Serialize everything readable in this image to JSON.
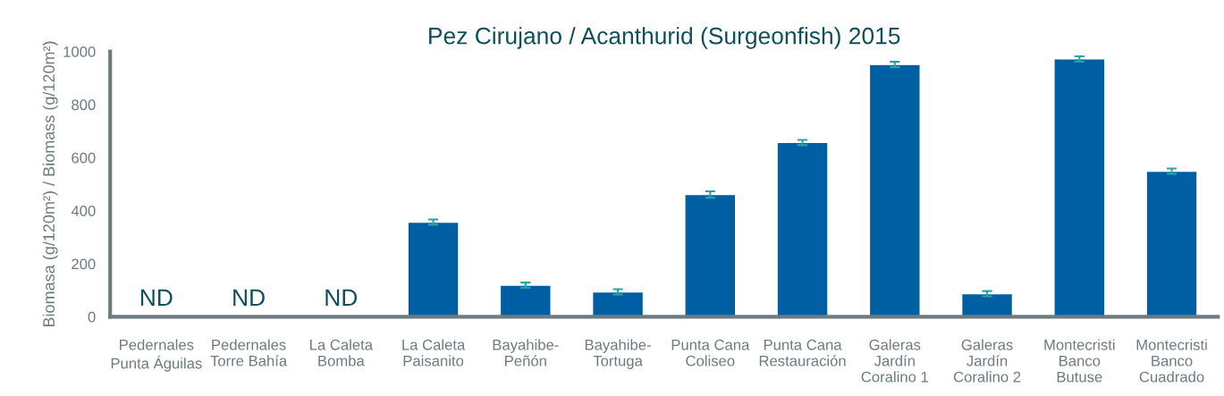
{
  "chart_data": {
    "type": "bar",
    "title": "Pez Cirujano / Acanthurid (Surgeonfish) 2015",
    "ylabel": "Biomasa (g/120m²) / Biomass (g/120m²)",
    "categories": [
      "Pedernales\nPunta Águilas",
      "Pedernales\nTorre Bahía",
      "La Caleta\nBomba",
      "La Caleta\nPaisanito",
      "Bayahibe-\nPeñón",
      "Bayahibe-\nTortuga",
      "Punta Cana\nColiseo",
      "Punta Cana\nRestauración",
      "Galeras\nJardín\nCoralino 1",
      "Galeras\nJardín\nCoralino 2",
      "Montecristi\nBanco\nButuse",
      "Montecristi\nBanco\nCuadrado"
    ],
    "values": [
      null,
      null,
      null,
      357,
      119,
      94,
      461,
      657,
      951,
      87,
      972,
      549
    ],
    "errors": [
      null,
      null,
      null,
      10,
      10,
      10,
      12,
      10,
      10,
      10,
      10,
      10
    ],
    "color": "#005fa3",
    "ylim": [
      0,
      1000
    ],
    "yticks": [
      0,
      200,
      400,
      600,
      800,
      1000
    ],
    "grid": false,
    "annotations": [
      "ND",
      "ND",
      "ND"
    ]
  }
}
